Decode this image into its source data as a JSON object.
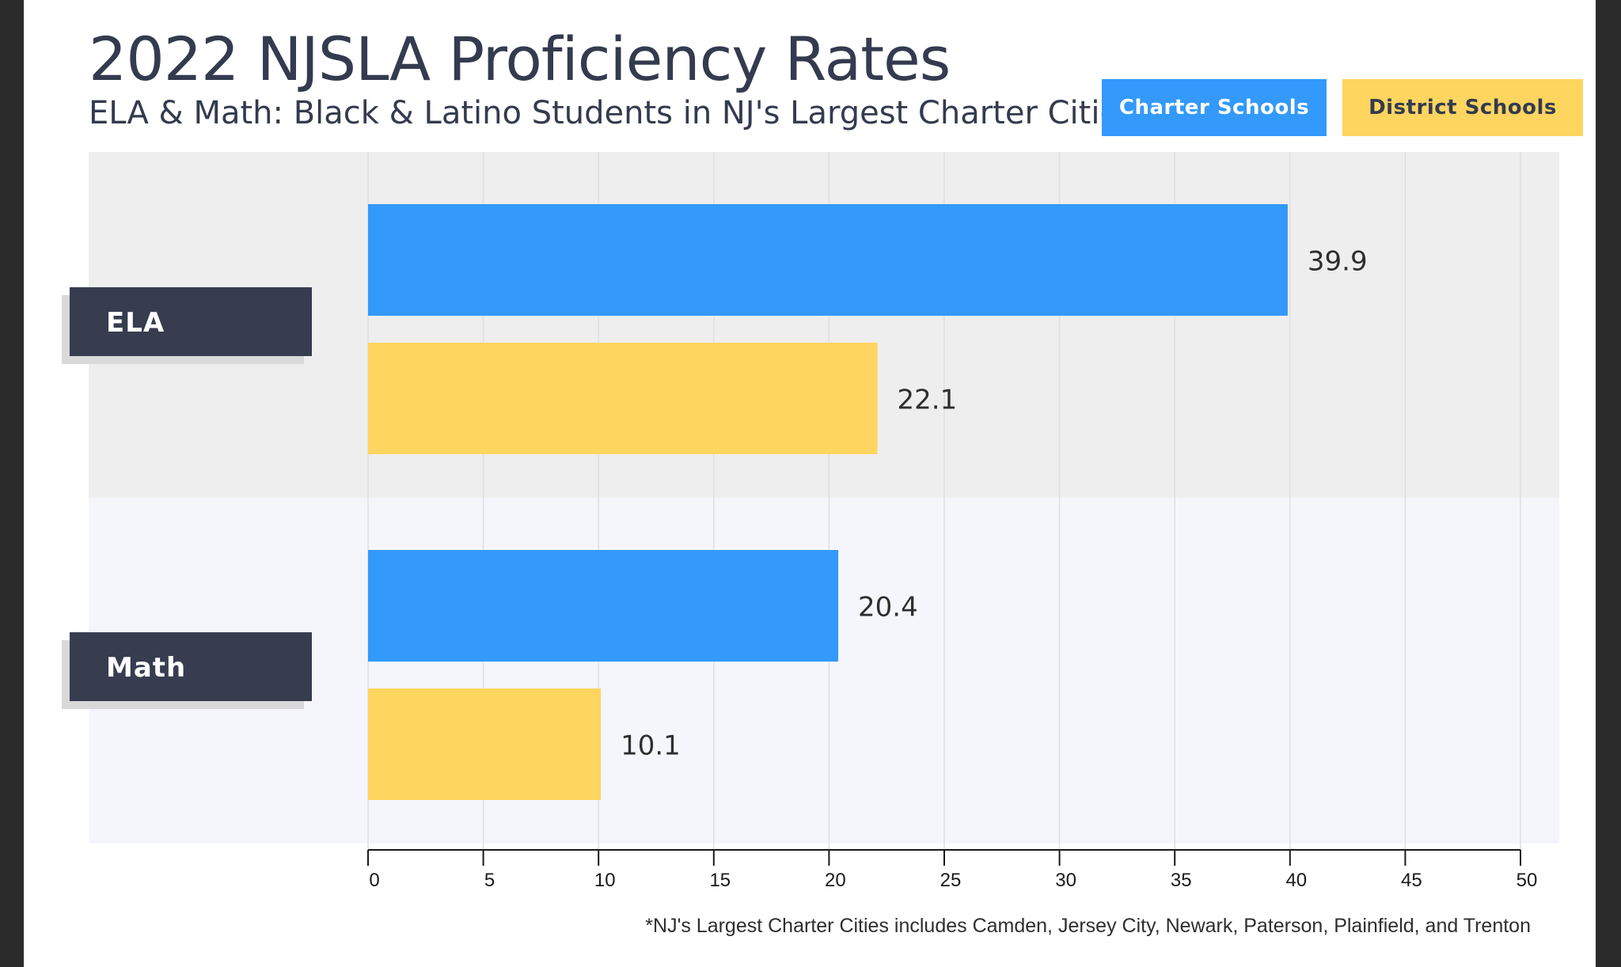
{
  "title": "2022 NJSLA Proficiency Rates",
  "subtitle": "ELA & Math: Black & Latino Students in NJ's Largest Charter Cities*",
  "legend": [
    {
      "label": "Charter Schools",
      "color": "#3399fb"
    },
    {
      "label": "District Schools",
      "color": "#fdd55f"
    }
  ],
  "footnote": "*NJ's Largest Charter Cities includes Camden, Jersey City, Newark, Paterson, Plainfield, and Trenton",
  "chart_data": {
    "type": "bar",
    "orientation": "horizontal",
    "categories": [
      "ELA",
      "Math"
    ],
    "series": [
      {
        "name": "Charter Schools",
        "values": [
          39.9,
          20.4
        ],
        "color": "#3399fb"
      },
      {
        "name": "District Schools",
        "values": [
          22.1,
          10.1
        ],
        "color": "#fdd55f"
      }
    ],
    "data_labels": [
      "39.9",
      "22.1",
      "20.4",
      "10.1"
    ],
    "xlim": [
      0,
      50
    ],
    "xticks": [
      0,
      5,
      10,
      15,
      20,
      25,
      30,
      35,
      40,
      45,
      50
    ],
    "xlabel": "",
    "ylabel": "",
    "grid": true,
    "legend_position": "top-right",
    "band_colors": [
      "#eeeeee",
      "#f5f6fc"
    ],
    "category_label_color": "#373d4f"
  }
}
